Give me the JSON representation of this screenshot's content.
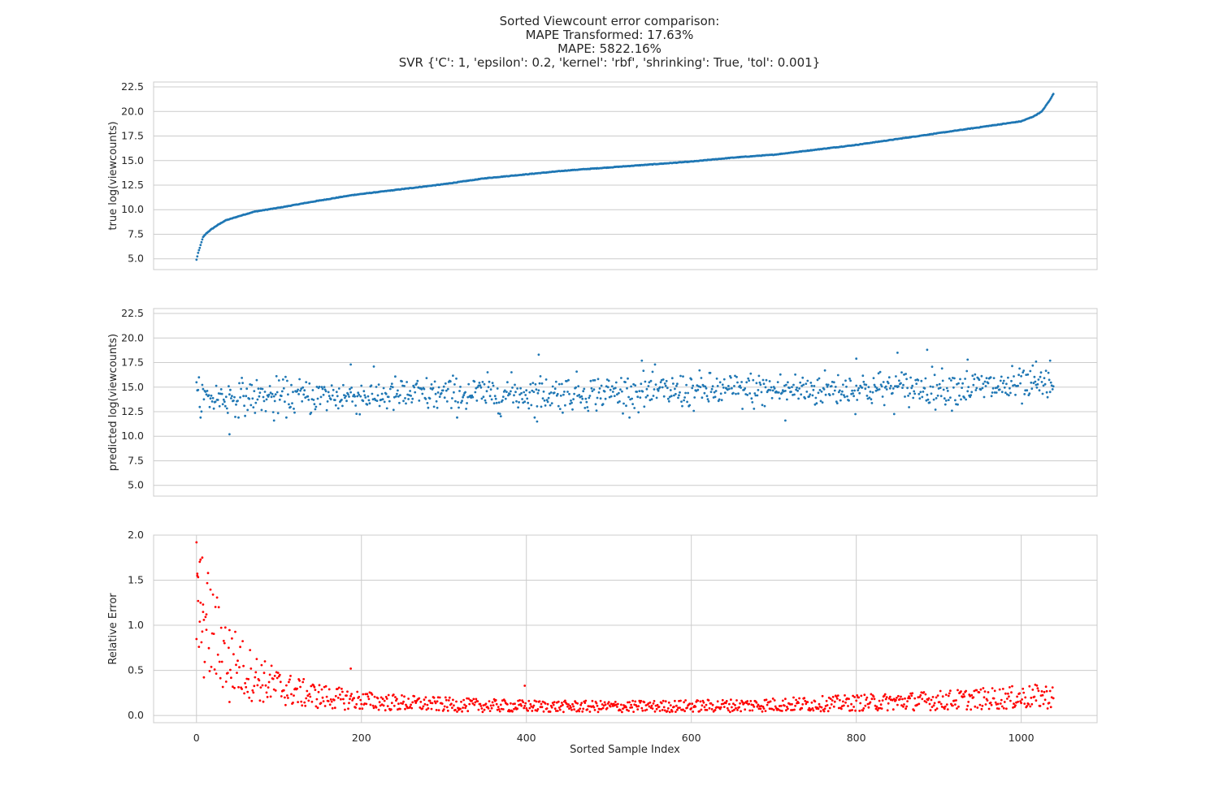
{
  "figure": {
    "title_lines": [
      "Sorted Viewcount error comparison:",
      "MAPE Transformed: 17.63%",
      "MAPE: 5822.16%",
      "SVR {'C': 1, 'epsilon': 0.2, 'kernel': 'rbf', 'shrinking': True, 'tol': 0.001}"
    ],
    "xlabel": "Sorted Sample Index"
  },
  "colors": {
    "blue": "#1f77b4",
    "red": "#ff0000",
    "grid": "#cccccc",
    "spine": "#cccccc",
    "text": "#262626"
  },
  "chart_data": [
    {
      "type": "scatter",
      "name": "true-values",
      "ylabel": "true log(viewcounts)",
      "xlim": [
        -52,
        1092
      ],
      "ylim": [
        3.9,
        23.0
      ],
      "yticks": [
        "5.0",
        "7.5",
        "10.0",
        "12.5",
        "15.0",
        "17.5",
        "20.0",
        "22.5"
      ],
      "xgrid": false,
      "ygrid": true,
      "n_points": 1040,
      "color": "#1f77b4",
      "profile_x": [
        0,
        2,
        4,
        6,
        8,
        12,
        18,
        25,
        35,
        50,
        70,
        100,
        140,
        190,
        250,
        300,
        350,
        400,
        450,
        500,
        550,
        600,
        650,
        700,
        750,
        800,
        850,
        900,
        950,
        1000,
        1015,
        1025,
        1030,
        1035,
        1039
      ],
      "profile_y": [
        4.9,
        5.6,
        6.1,
        6.7,
        7.2,
        7.6,
        8.0,
        8.4,
        8.9,
        9.3,
        9.8,
        10.2,
        10.8,
        11.5,
        12.1,
        12.6,
        13.2,
        13.6,
        14.0,
        14.3,
        14.6,
        14.9,
        15.3,
        15.6,
        16.1,
        16.6,
        17.2,
        17.8,
        18.4,
        19.0,
        19.5,
        20.0,
        20.6,
        21.2,
        21.8
      ]
    },
    {
      "type": "scatter",
      "name": "predicted-values",
      "ylabel": "predicted log(viewcounts)",
      "xlim": [
        -52,
        1092
      ],
      "ylim": [
        3.9,
        23.0
      ],
      "yticks": [
        "5.0",
        "7.5",
        "10.0",
        "12.5",
        "15.0",
        "17.5",
        "20.0",
        "22.5"
      ],
      "xgrid": false,
      "ygrid": true,
      "n_points": 1040,
      "color": "#1f77b4",
      "trend": {
        "start": 13.9,
        "end": 15.1,
        "spread": 0.9
      },
      "outliers": [
        [
          40,
          10.2
        ],
        [
          415,
          18.3
        ],
        [
          886,
          18.8
        ],
        [
          850,
          18.5
        ],
        [
          1035,
          17.7
        ],
        [
          540,
          17.7
        ],
        [
          800,
          17.9
        ],
        [
          187,
          17.3
        ],
        [
          935,
          17.8
        ],
        [
          1018,
          17.6
        ],
        [
          714,
          11.6
        ],
        [
          413,
          11.5
        ],
        [
          94,
          11.6
        ]
      ]
    },
    {
      "type": "scatter",
      "name": "relative-error",
      "ylabel": "Relative Error",
      "xlim": [
        -52,
        1092
      ],
      "ylim": [
        -0.08,
        2.0
      ],
      "yticks": [
        "0.0",
        "0.5",
        "1.0",
        "1.5",
        "2.0"
      ],
      "xticks": [
        "0",
        "200",
        "400",
        "600",
        "800",
        "1000"
      ],
      "xgrid": true,
      "ygrid": true,
      "n_points": 1040,
      "color": "#ff0000",
      "outliers": [
        [
          0,
          1.92
        ],
        [
          1,
          1.55
        ],
        [
          2,
          1.27
        ],
        [
          5,
          1.25
        ],
        [
          8,
          1.23
        ],
        [
          4,
          1.04
        ],
        [
          9,
          1.06
        ],
        [
          7,
          0.93
        ],
        [
          12,
          0.95
        ],
        [
          398,
          0.33
        ],
        [
          187,
          0.52
        ],
        [
          40,
          0.15
        ]
      ]
    }
  ]
}
